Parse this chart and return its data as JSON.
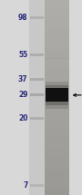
{
  "background_color": "#d8d8d8",
  "ladder_lane_color": "#c8c8c8",
  "sample_lane_bg": "#b0aeaa",
  "mw_labels": [
    "98",
    "55",
    "37",
    "29",
    "20",
    "7"
  ],
  "mw_positions": [
    98,
    55,
    37,
    29,
    20,
    7
  ],
  "mw_label_color": "#2a2a7a",
  "label_fontsize": 5.5,
  "arrow_color": "#111111",
  "band_at_kda": 29,
  "fig_width": 0.9,
  "fig_height": 2.15,
  "dpi": 100,
  "mw_min": 6,
  "mw_max": 130,
  "ladder_bands": [
    98,
    55,
    37,
    29,
    20,
    7
  ],
  "ladder_band_color": "#a0a0a0",
  "sample_band_color": "#101010"
}
